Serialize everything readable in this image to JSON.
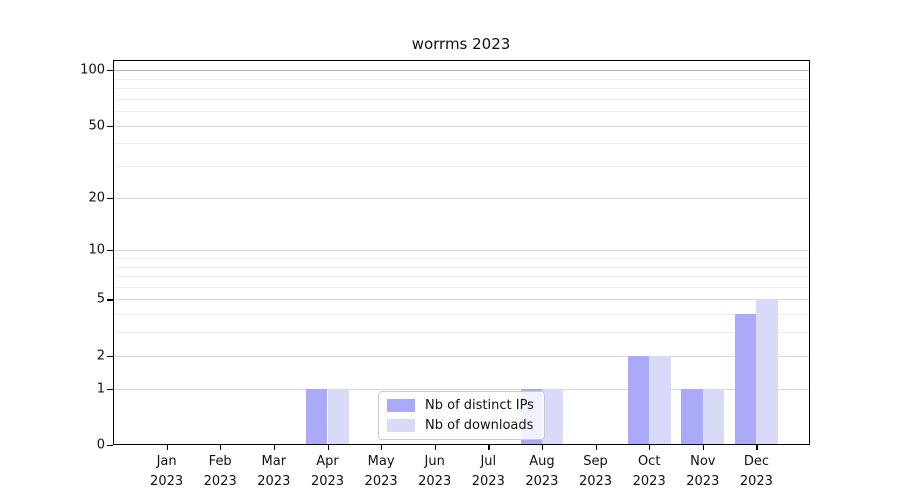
{
  "chart_data": {
    "type": "bar",
    "title": "worrms 2023",
    "x_months": [
      "Jan",
      "Feb",
      "Mar",
      "Apr",
      "May",
      "Jun",
      "Jul",
      "Aug",
      "Sep",
      "Oct",
      "Nov",
      "Dec"
    ],
    "x_year": "2023",
    "series": [
      {
        "name": "Nb of distinct IPs",
        "color": "#aaaaf8",
        "values": [
          0,
          0,
          0,
          1,
          0,
          0,
          0,
          1,
          0,
          2,
          1,
          4
        ]
      },
      {
        "name": "Nb of downloads",
        "color": "#d9d9f8",
        "values": [
          0,
          0,
          0,
          1,
          0,
          0,
          0,
          1,
          0,
          2,
          1,
          5
        ]
      }
    ],
    "y_scale": "log10(1+x)",
    "y_major_ticks": [
      0,
      1,
      2,
      5,
      10,
      20,
      50,
      100
    ],
    "y_minor_ticks": [
      3,
      4,
      6,
      7,
      8,
      9,
      30,
      40,
      60,
      70,
      80,
      90
    ],
    "ylim": [
      0,
      113.6
    ],
    "grid": true,
    "legend_position": "bottom-center"
  },
  "colors": {
    "axis": "#000000",
    "grid_major": "#d8d8d8",
    "grid_minor": "#ededed",
    "grid_hundred": "#b0b0b0",
    "text": "#111111",
    "legend_border": "#cccccc",
    "background": "#ffffff"
  }
}
